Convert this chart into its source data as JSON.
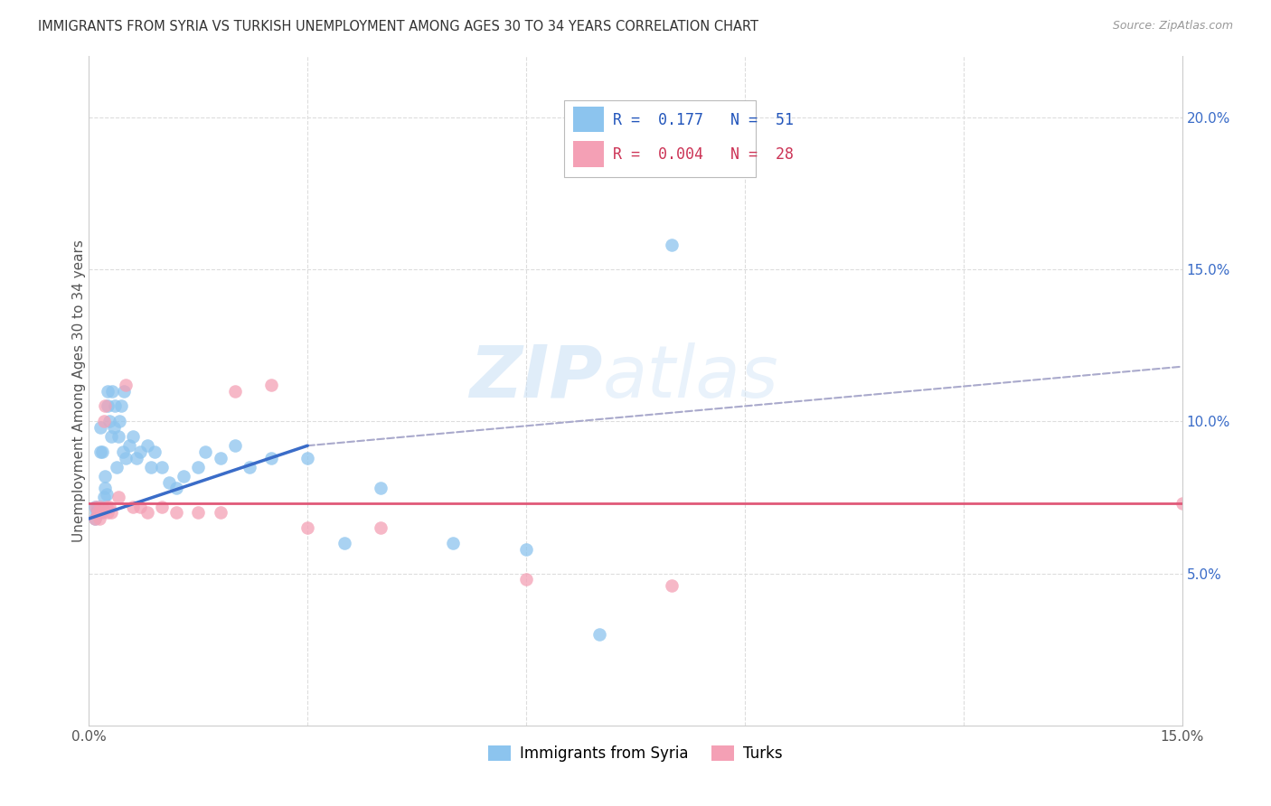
{
  "title": "IMMIGRANTS FROM SYRIA VS TURKISH UNEMPLOYMENT AMONG AGES 30 TO 34 YEARS CORRELATION CHART",
  "source": "Source: ZipAtlas.com",
  "ylabel": "Unemployment Among Ages 30 to 34 years",
  "xlim": [
    0.0,
    0.15
  ],
  "ylim": [
    0.0,
    0.22
  ],
  "yticks_right": [
    0.05,
    0.1,
    0.15,
    0.2
  ],
  "yticklabels_right": [
    "5.0%",
    "10.0%",
    "15.0%",
    "20.0%"
  ],
  "watermark_zip": "ZIP",
  "watermark_atlas": "atlas",
  "color_blue": "#8CC4EE",
  "color_pink": "#F4A0B5",
  "color_blue_line": "#3A6CC8",
  "color_pink_line": "#E05878",
  "color_dashed": "#AAAACC",
  "grid_color": "#DDDDDD",
  "syria_x": [
    0.0008,
    0.0008,
    0.001,
    0.0012,
    0.0014,
    0.0015,
    0.0016,
    0.0018,
    0.0018,
    0.002,
    0.0022,
    0.0022,
    0.0024,
    0.0025,
    0.0026,
    0.0028,
    0.003,
    0.0032,
    0.0034,
    0.0036,
    0.0038,
    0.004,
    0.0042,
    0.0044,
    0.0046,
    0.0048,
    0.005,
    0.0055,
    0.006,
    0.0065,
    0.007,
    0.008,
    0.0085,
    0.009,
    0.01,
    0.011,
    0.012,
    0.013,
    0.015,
    0.016,
    0.018,
    0.02,
    0.022,
    0.025,
    0.03,
    0.035,
    0.04,
    0.05,
    0.06,
    0.07,
    0.08
  ],
  "syria_y": [
    0.068,
    0.072,
    0.07,
    0.072,
    0.07,
    0.09,
    0.098,
    0.072,
    0.09,
    0.075,
    0.078,
    0.082,
    0.076,
    0.105,
    0.11,
    0.1,
    0.095,
    0.11,
    0.098,
    0.105,
    0.085,
    0.095,
    0.1,
    0.105,
    0.09,
    0.11,
    0.088,
    0.092,
    0.095,
    0.088,
    0.09,
    0.092,
    0.085,
    0.09,
    0.085,
    0.08,
    0.078,
    0.082,
    0.085,
    0.09,
    0.088,
    0.092,
    0.085,
    0.088,
    0.088,
    0.06,
    0.078,
    0.06,
    0.058,
    0.03,
    0.158
  ],
  "turks_x": [
    0.0008,
    0.001,
    0.0012,
    0.0014,
    0.0016,
    0.0018,
    0.002,
    0.0022,
    0.0024,
    0.0026,
    0.0028,
    0.003,
    0.004,
    0.005,
    0.006,
    0.007,
    0.008,
    0.01,
    0.012,
    0.015,
    0.018,
    0.02,
    0.025,
    0.03,
    0.04,
    0.06,
    0.08,
    0.15
  ],
  "turks_y": [
    0.068,
    0.072,
    0.07,
    0.068,
    0.072,
    0.07,
    0.1,
    0.105,
    0.072,
    0.07,
    0.072,
    0.07,
    0.075,
    0.112,
    0.072,
    0.072,
    0.07,
    0.072,
    0.07,
    0.07,
    0.07,
    0.11,
    0.112,
    0.065,
    0.065,
    0.048,
    0.046,
    0.073
  ],
  "blue_line_x0": 0.0,
  "blue_line_y0": 0.068,
  "blue_line_x1": 0.03,
  "blue_line_y1": 0.092,
  "pink_line_y": 0.073,
  "dash_line_x0": 0.03,
  "dash_line_y0": 0.092,
  "dash_line_x1": 0.15,
  "dash_line_y1": 0.118
}
